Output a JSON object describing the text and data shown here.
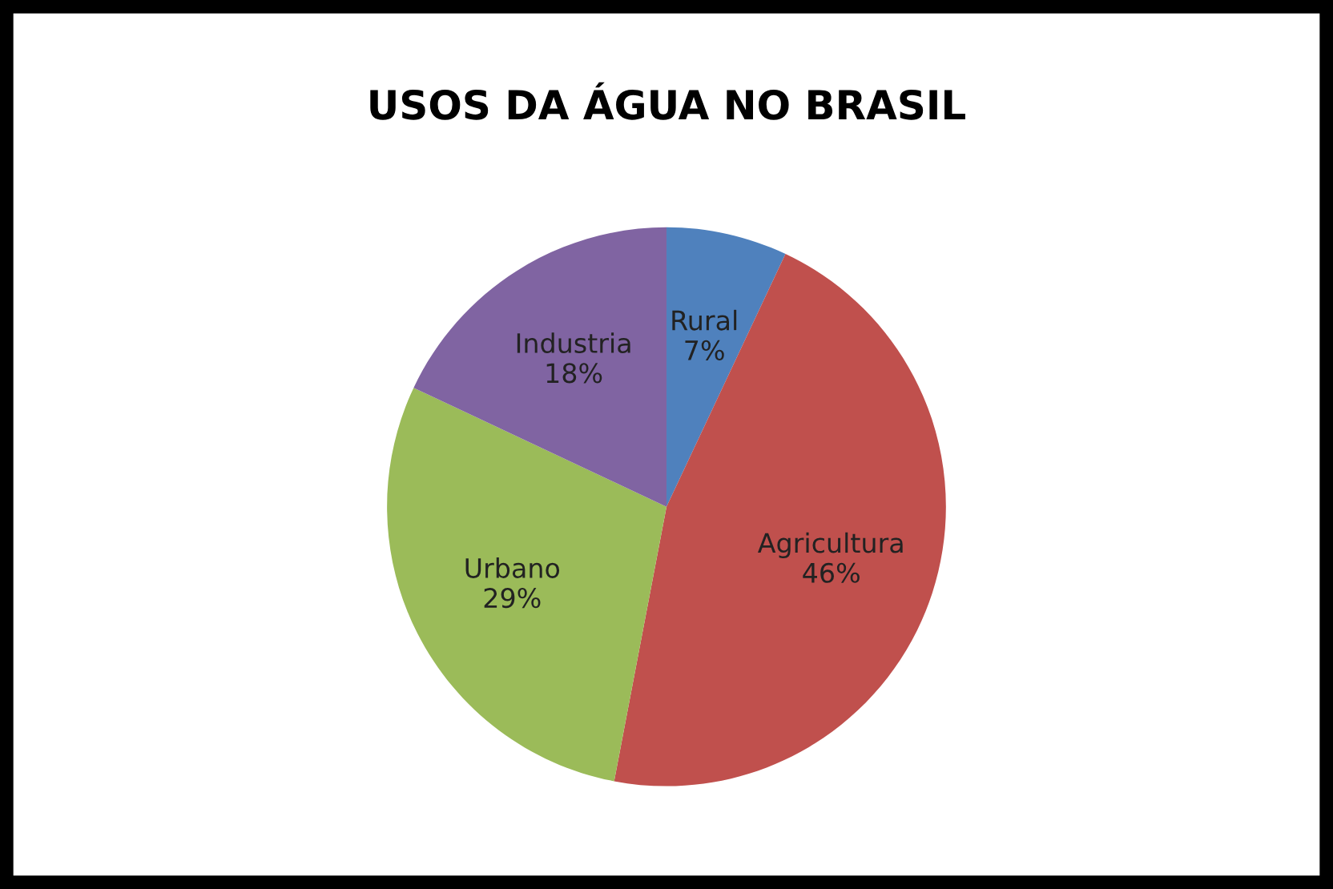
{
  "chart_data": {
    "type": "pie",
    "title": "USOS DA ÁGUA NO BRASIL",
    "categories": [
      "Rural",
      "Agricultura",
      "Urbano",
      "Industria"
    ],
    "values": [
      7,
      46,
      29,
      18
    ],
    "value_labels": [
      "7%",
      "46%",
      "29%",
      "18%"
    ],
    "colors": [
      "#4f81bd",
      "#c0504d",
      "#9bbb59",
      "#8064a2"
    ]
  }
}
